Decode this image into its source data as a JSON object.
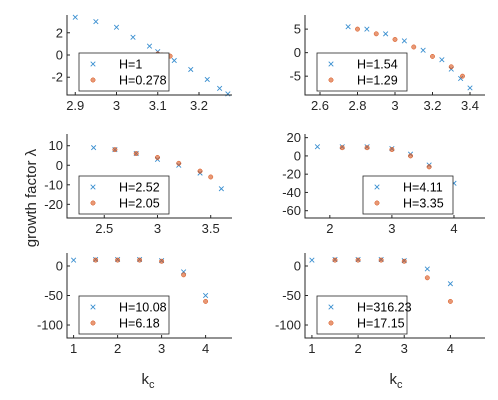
{
  "figure": {
    "ylabel": "growth factor  λ",
    "xlabel_main": "k",
    "xlabel_sub": "c"
  },
  "colors": {
    "series_a": "#3a8fd0",
    "series_b": "#d95319",
    "axis": "#262626",
    "background": "#ffffff"
  },
  "chart_data": [
    {
      "type": "scatter",
      "panel": "top-left",
      "xlim": [
        2.88,
        3.28
      ],
      "ylim": [
        -3.6,
        3.6
      ],
      "xticks": [
        2.9,
        3,
        3.1,
        3.2
      ],
      "yticks": [
        -2,
        0,
        2
      ],
      "legend_position": "bottom-left",
      "series": [
        {
          "name": "H=1",
          "marker": "x",
          "points": [
            [
              2.9,
              3.4
            ],
            [
              2.95,
              3.0
            ],
            [
              3.0,
              2.5
            ],
            [
              3.04,
              1.6
            ],
            [
              3.08,
              0.8
            ],
            [
              3.1,
              0.3
            ],
            [
              3.14,
              -0.5
            ],
            [
              3.18,
              -1.3
            ],
            [
              3.22,
              -2.2
            ],
            [
              3.25,
              -3.0
            ],
            [
              3.27,
              -3.5
            ]
          ]
        },
        {
          "name": "H=0.278",
          "marker": "o",
          "points": [
            [
              3.1,
              0.1
            ],
            [
              3.11,
              0.0
            ],
            [
              3.12,
              -0.05
            ],
            [
              3.13,
              -0.1
            ]
          ]
        }
      ]
    },
    {
      "type": "scatter",
      "panel": "top-right",
      "xlim": [
        2.52,
        3.48
      ],
      "ylim": [
        -9,
        8
      ],
      "xticks": [
        2.6,
        2.8,
        3,
        3.2,
        3.4
      ],
      "yticks": [
        -5,
        0,
        5
      ],
      "legend_position": "bottom-left",
      "series": [
        {
          "name": "H=1.54",
          "marker": "x",
          "points": [
            [
              2.75,
              5.5
            ],
            [
              2.85,
              5.0
            ],
            [
              2.95,
              4.0
            ],
            [
              3.05,
              2.5
            ],
            [
              3.15,
              0.5
            ],
            [
              3.25,
              -1.5
            ],
            [
              3.3,
              -3.5
            ],
            [
              3.35,
              -5.5
            ],
            [
              3.4,
              -7.5
            ]
          ]
        },
        {
          "name": "H=1.29",
          "marker": "o",
          "points": [
            [
              2.8,
              5.0
            ],
            [
              2.9,
              4.0
            ],
            [
              3.0,
              2.8
            ],
            [
              3.1,
              1.2
            ],
            [
              3.2,
              -0.8
            ],
            [
              3.3,
              -3.0
            ],
            [
              3.36,
              -5.0
            ]
          ]
        }
      ]
    },
    {
      "type": "scatter",
      "panel": "middle-left",
      "xlim": [
        2.15,
        3.7
      ],
      "ylim": [
        -27,
        16
      ],
      "xticks": [
        2.5,
        3,
        3.5
      ],
      "yticks": [
        -20,
        -10,
        0,
        10
      ],
      "legend_position": "bottom-left",
      "series": [
        {
          "name": "H=2.52",
          "marker": "x",
          "points": [
            [
              2.4,
              9
            ],
            [
              2.6,
              8
            ],
            [
              2.8,
              6
            ],
            [
              3.0,
              3
            ],
            [
              3.2,
              0
            ],
            [
              3.4,
              -4
            ],
            [
              3.6,
              -12
            ]
          ]
        },
        {
          "name": "H=2.05",
          "marker": "o",
          "points": [
            [
              2.6,
              8
            ],
            [
              2.8,
              6
            ],
            [
              3.0,
              4
            ],
            [
              3.2,
              1
            ],
            [
              3.4,
              -3
            ],
            [
              3.5,
              -6
            ]
          ]
        }
      ]
    },
    {
      "type": "scatter",
      "panel": "middle-right",
      "xlim": [
        1.6,
        4.5
      ],
      "ylim": [
        -68,
        24
      ],
      "xticks": [
        2,
        3,
        4
      ],
      "yticks": [
        -60,
        -40,
        -20,
        0,
        20
      ],
      "legend_position": "bottom-right",
      "series": [
        {
          "name": "H=4.11",
          "marker": "x",
          "points": [
            [
              1.8,
              10
            ],
            [
              2.2,
              10
            ],
            [
              2.6,
              10
            ],
            [
              3.0,
              8
            ],
            [
              3.3,
              2
            ],
            [
              3.6,
              -10
            ],
            [
              4.0,
              -30
            ]
          ]
        },
        {
          "name": "H=3.35",
          "marker": "o",
          "points": [
            [
              2.2,
              9
            ],
            [
              2.6,
              9
            ],
            [
              3.0,
              7
            ],
            [
              3.3,
              0
            ],
            [
              3.6,
              -12
            ],
            [
              3.9,
              -25
            ]
          ]
        }
      ]
    },
    {
      "type": "scatter",
      "panel": "bottom-left",
      "xlim": [
        0.85,
        4.6
      ],
      "ylim": [
        -122,
        22
      ],
      "xticks": [
        1,
        2,
        3,
        4
      ],
      "yticks": [
        -100,
        -50,
        0
      ],
      "legend_position": "bottom-left",
      "series": [
        {
          "name": "H=10.08",
          "marker": "x",
          "points": [
            [
              1.0,
              10
            ],
            [
              1.5,
              11
            ],
            [
              2.0,
              11
            ],
            [
              2.5,
              11
            ],
            [
              3.0,
              9
            ],
            [
              3.5,
              -10
            ],
            [
              4.0,
              -50
            ]
          ]
        },
        {
          "name": "H=6.18",
          "marker": "o",
          "points": [
            [
              1.5,
              10
            ],
            [
              2.0,
              10
            ],
            [
              2.5,
              10
            ],
            [
              3.0,
              8
            ],
            [
              3.5,
              -15
            ],
            [
              4.0,
              -60
            ]
          ]
        }
      ]
    },
    {
      "type": "scatter",
      "panel": "bottom-right",
      "xlim": [
        0.85,
        4.75
      ],
      "ylim": [
        -122,
        22
      ],
      "xticks": [
        1,
        2,
        3,
        4
      ],
      "yticks": [
        -100,
        -50,
        0
      ],
      "legend_position": "bottom-left",
      "series": [
        {
          "name": "H=316.23",
          "marker": "x",
          "points": [
            [
              1.0,
              10
            ],
            [
              1.5,
              11
            ],
            [
              2.0,
              11
            ],
            [
              2.5,
              11
            ],
            [
              3.0,
              9
            ],
            [
              3.5,
              -5
            ],
            [
              4.0,
              -30
            ]
          ]
        },
        {
          "name": "H=17.15",
          "marker": "o",
          "points": [
            [
              1.5,
              10
            ],
            [
              2.0,
              10
            ],
            [
              2.5,
              10
            ],
            [
              3.0,
              8
            ],
            [
              3.5,
              -20
            ],
            [
              4.0,
              -60
            ]
          ]
        }
      ]
    }
  ]
}
